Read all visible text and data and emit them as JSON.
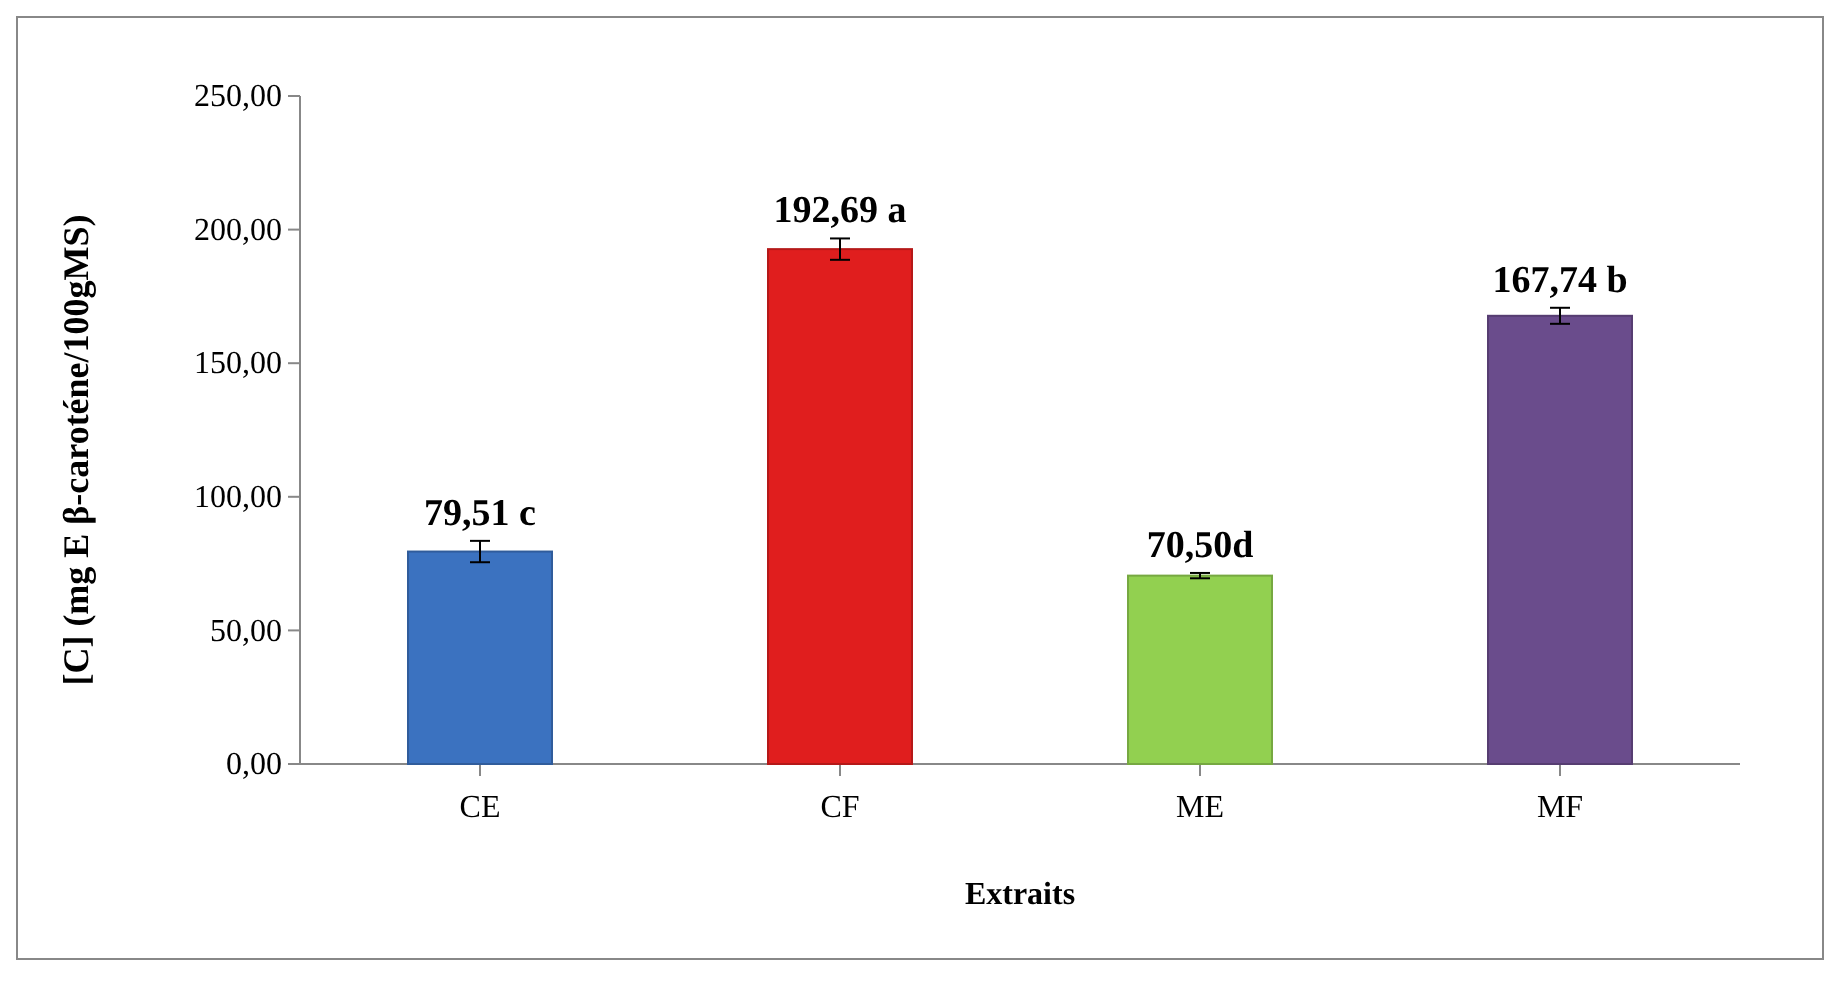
{
  "chart_data": {
    "type": "bar",
    "xlabel": "Extraits",
    "ylabel": "[C] (mg E β-caroténe/100gMS)",
    "categories": [
      "CE",
      "CF",
      "ME",
      "MF"
    ],
    "values": [
      79.51,
      192.69,
      70.5,
      167.74
    ],
    "colors": [
      "#3b72c0",
      "#e01e1e",
      "#92d050",
      "#6a4c8c"
    ],
    "errors": [
      4,
      4,
      1,
      3
    ],
    "value_labels": [
      "79,51 c",
      "192,69 a",
      "70,50d",
      "167,74 b"
    ],
    "ylim": [
      0,
      250
    ],
    "yticks": [
      {
        "value": 0,
        "label": "0,00"
      },
      {
        "value": 50,
        "label": "50,00"
      },
      {
        "value": 100,
        "label": "100,00"
      },
      {
        "value": 150,
        "label": "150,00"
      },
      {
        "value": 200,
        "label": "200,00"
      },
      {
        "value": 250,
        "label": "250,00"
      }
    ],
    "grid": false
  }
}
